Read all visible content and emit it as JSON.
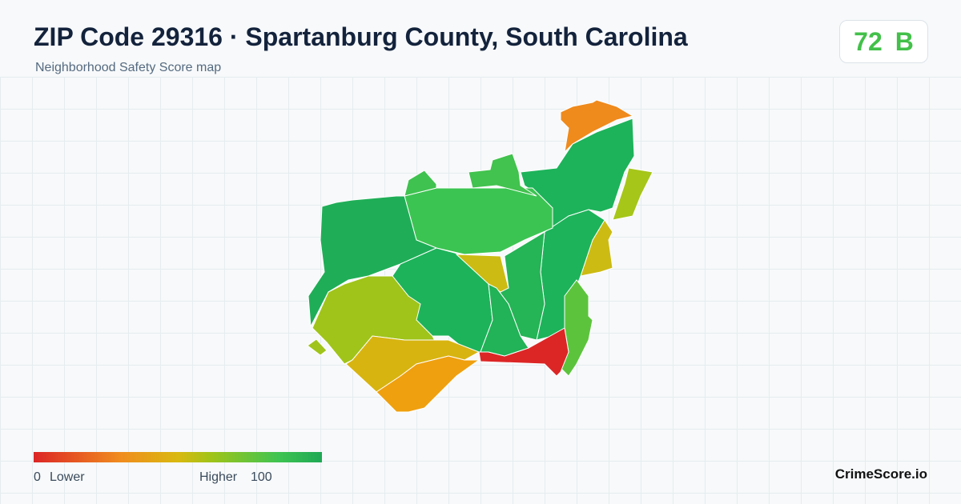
{
  "header": {
    "title": "ZIP Code 29316 · Spartanburg County, South Carolina",
    "subtitle": "Neighborhood Safety Score map"
  },
  "badge": {
    "score": 72,
    "grade": "B"
  },
  "legend": {
    "min": 0,
    "min_label": "Lower",
    "max_label": "Higher",
    "max": 100
  },
  "footer": {
    "brand": "CrimeScore.io"
  }
}
